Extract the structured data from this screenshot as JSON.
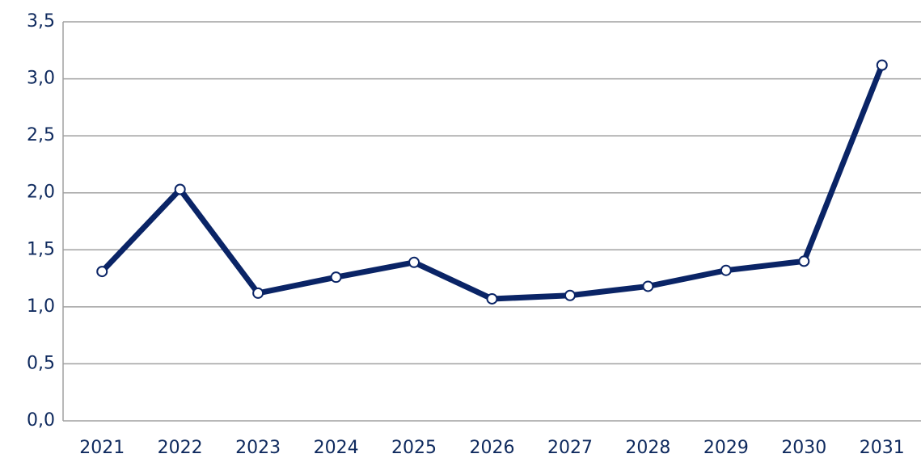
{
  "chart_data": {
    "type": "line",
    "categories": [
      "2021",
      "2022",
      "2023",
      "2024",
      "2025",
      "2026",
      "2027",
      "2028",
      "2029",
      "2030",
      "2031"
    ],
    "series": [
      {
        "color": "#0a2466",
        "values": [
          1.31,
          2.03,
          1.12,
          1.26,
          1.39,
          1.07,
          1.1,
          1.18,
          1.32,
          1.4,
          3.12
        ]
      }
    ],
    "ylim": [
      0,
      3.5
    ],
    "yticks": [
      {
        "value": 0,
        "label": "0,0"
      },
      {
        "value": 0.5,
        "label": "0,5"
      },
      {
        "value": 1,
        "label": "1,0"
      },
      {
        "value": 1.5,
        "label": "1,5"
      },
      {
        "value": 2,
        "label": "2,0"
      },
      {
        "value": 2.5,
        "label": "2,5"
      },
      {
        "value": 3,
        "label": "3,0"
      },
      {
        "value": 3.5,
        "label": "3,5"
      }
    ],
    "grid": true
  }
}
